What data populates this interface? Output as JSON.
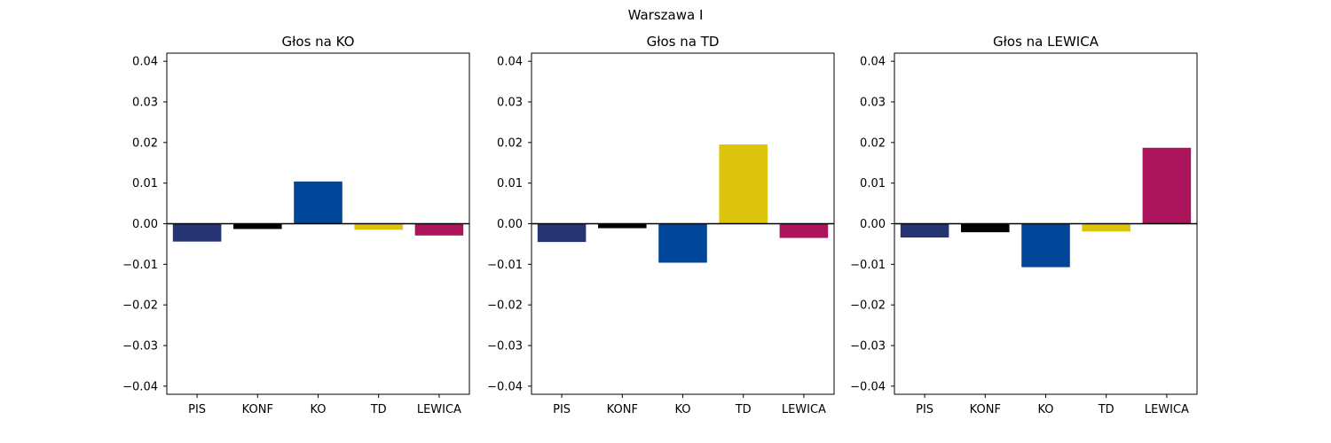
{
  "figure": {
    "title": "Warszawa I"
  },
  "colors": {
    "PIS": "#263473",
    "KONF": "#000000",
    "KO": "#00479a",
    "TD": "#dcc30c",
    "LEWICA": "#ab145a"
  },
  "chart_data": [
    {
      "type": "bar",
      "title": "Głos na KO",
      "categories": [
        "PIS",
        "KONF",
        "KO",
        "TD",
        "LEWICA"
      ],
      "values": [
        -0.0044,
        -0.0013,
        0.0104,
        -0.0015,
        -0.0029
      ],
      "ylim": [
        -0.042,
        0.042
      ],
      "yticks": [
        "0.04",
        "0.03",
        "0.02",
        "0.01",
        "0.00",
        "−0.01",
        "−0.02",
        "−0.03",
        "−0.04"
      ],
      "xlabel": "",
      "ylabel": "",
      "grid": false
    },
    {
      "type": "bar",
      "title": "Głos na TD",
      "categories": [
        "PIS",
        "KONF",
        "KO",
        "TD",
        "LEWICA"
      ],
      "values": [
        -0.0045,
        -0.0011,
        -0.0096,
        0.0195,
        -0.0035
      ],
      "ylim": [
        -0.042,
        0.042
      ],
      "yticks": [
        "0.04",
        "0.03",
        "0.02",
        "0.01",
        "0.00",
        "−0.01",
        "−0.02",
        "−0.03",
        "−0.04"
      ],
      "xlabel": "",
      "ylabel": "",
      "grid": false
    },
    {
      "type": "bar",
      "title": "Głos na LEWICA",
      "categories": [
        "PIS",
        "KONF",
        "KO",
        "TD",
        "LEWICA"
      ],
      "values": [
        -0.0034,
        -0.0021,
        -0.0107,
        -0.0019,
        0.0187
      ],
      "ylim": [
        -0.042,
        0.042
      ],
      "yticks": [
        "0.04",
        "0.03",
        "0.02",
        "0.01",
        "0.00",
        "−0.01",
        "−0.02",
        "−0.03",
        "−0.04"
      ],
      "xlabel": "",
      "ylabel": "",
      "grid": false
    }
  ]
}
